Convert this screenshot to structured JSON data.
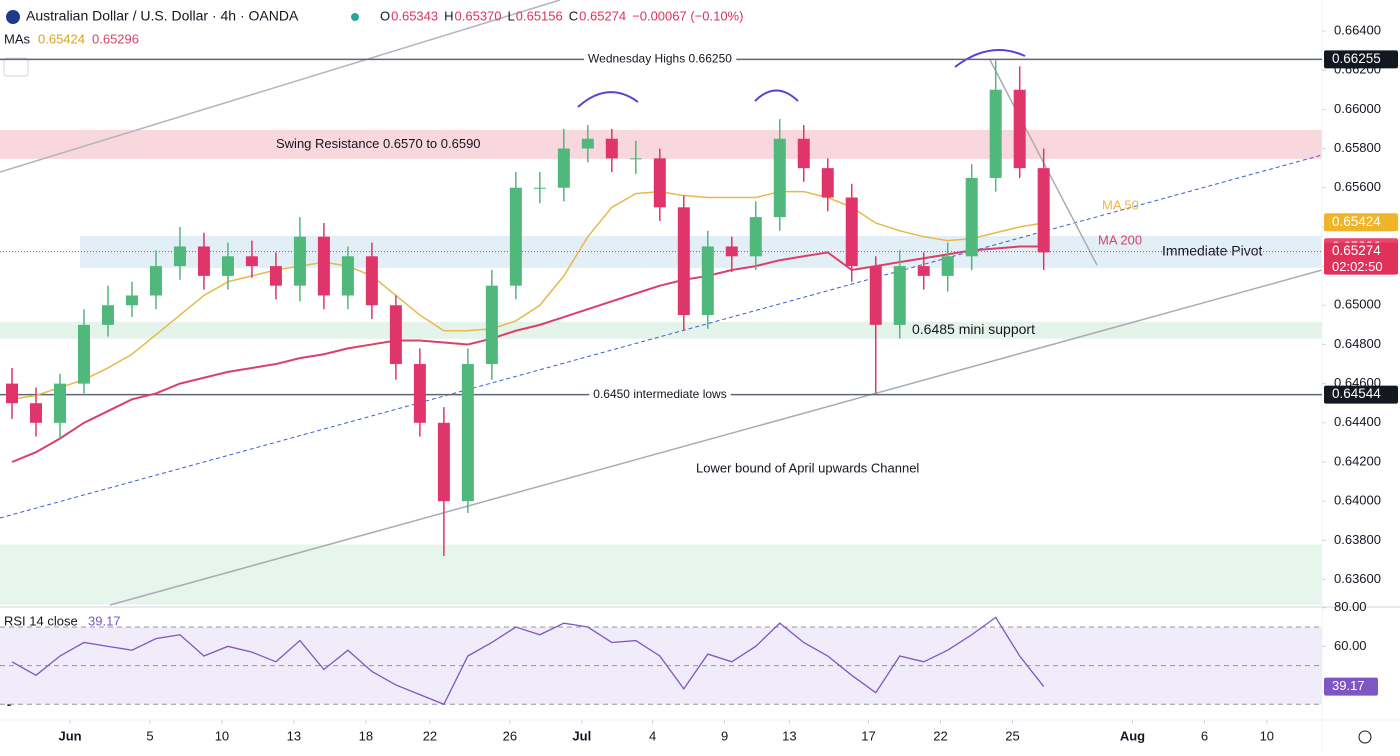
{
  "chart_data": {
    "type": "candlestick",
    "title": "Australian Dollar / U.S. Dollar · 4h · OANDA",
    "header": [
      [
        "O",
        "0.65343"
      ],
      [
        "H",
        "0.65370"
      ],
      [
        "L",
        "0.65156"
      ],
      [
        "C",
        "0.65274"
      ],
      [
        "",
        "−0.00067 (−0.10%)"
      ]
    ],
    "ma_header": {
      "label": "MAs",
      "values": [
        "0.65424",
        "0.65296"
      ]
    },
    "open": [
      0.646,
      0.645,
      0.644,
      0.646,
      0.649,
      0.65,
      0.6505,
      0.652,
      0.653,
      0.6515,
      0.6525,
      0.652,
      0.651,
      0.6535,
      0.6505,
      0.6525,
      0.65,
      0.647,
      0.644,
      0.64,
      0.647,
      0.651,
      0.656,
      0.656,
      0.658,
      0.6585,
      0.6575,
      0.6575,
      0.655,
      0.6495,
      0.653,
      0.6525,
      0.6545,
      0.6585,
      0.657,
      0.6555,
      0.652,
      0.649,
      0.652,
      0.6515,
      0.6525,
      0.6565,
      0.661,
      0.657
    ],
    "high": [
      0.6468,
      0.6458,
      0.6465,
      0.6498,
      0.651,
      0.6512,
      0.6528,
      0.654,
      0.6537,
      0.6532,
      0.6533,
      0.6527,
      0.6545,
      0.6542,
      0.653,
      0.6532,
      0.6505,
      0.6478,
      0.6448,
      0.6478,
      0.6518,
      0.6568,
      0.6568,
      0.659,
      0.6592,
      0.659,
      0.6584,
      0.658,
      0.6556,
      0.6538,
      0.6535,
      0.6553,
      0.6595,
      0.6592,
      0.6575,
      0.6562,
      0.6525,
      0.6528,
      0.6527,
      0.6532,
      0.6572,
      0.6625,
      0.6622,
      0.658
    ],
    "low": [
      0.6442,
      0.6433,
      0.6432,
      0.6455,
      0.6484,
      0.6494,
      0.6498,
      0.6513,
      0.6508,
      0.6508,
      0.6514,
      0.6503,
      0.6502,
      0.6498,
      0.6498,
      0.6493,
      0.6462,
      0.6433,
      0.6372,
      0.6394,
      0.6462,
      0.6503,
      0.6552,
      0.6553,
      0.6573,
      0.6568,
      0.6567,
      0.6543,
      0.6487,
      0.6488,
      0.6517,
      0.6518,
      0.6538,
      0.6563,
      0.6548,
      0.6512,
      0.6455,
      0.6483,
      0.6508,
      0.6507,
      0.6518,
      0.6558,
      0.6565,
      0.6518
    ],
    "close": [
      0.645,
      0.644,
      0.646,
      0.649,
      0.65,
      0.6505,
      0.652,
      0.653,
      0.6515,
      0.6525,
      0.652,
      0.651,
      0.6535,
      0.6505,
      0.6525,
      0.65,
      0.647,
      0.644,
      0.64,
      0.647,
      0.651,
      0.656,
      0.656,
      0.658,
      0.6585,
      0.6575,
      0.6575,
      0.655,
      0.6495,
      0.653,
      0.6525,
      0.6545,
      0.6585,
      0.657,
      0.6555,
      0.652,
      0.649,
      0.652,
      0.6515,
      0.6525,
      0.6565,
      0.661,
      0.657,
      0.6527
    ],
    "up_color": "#4fb87a",
    "down_color": "#e0356a",
    "series": [
      {
        "name": "MA 50",
        "color": "#e8b84a",
        "values": [
          0.6452,
          0.6454,
          0.6458,
          0.6462,
          0.6468,
          0.6475,
          0.6485,
          0.6495,
          0.6505,
          0.6512,
          0.6515,
          0.6518,
          0.652,
          0.6522,
          0.652,
          0.6515,
          0.6505,
          0.6495,
          0.6487,
          0.6487,
          0.6488,
          0.6492,
          0.65,
          0.6515,
          0.6535,
          0.655,
          0.6557,
          0.6558,
          0.6556,
          0.6555,
          0.6555,
          0.6555,
          0.6558,
          0.6558,
          0.6555,
          0.655,
          0.6542,
          0.6538,
          0.6535,
          0.6533,
          0.6534,
          0.6537,
          0.654,
          0.6542
        ]
      },
      {
        "name": "MA 200",
        "color": "#d9416a",
        "values": [
          0.642,
          0.6425,
          0.6432,
          0.644,
          0.6446,
          0.6452,
          0.6455,
          0.646,
          0.6463,
          0.6466,
          0.6468,
          0.647,
          0.6473,
          0.6475,
          0.6478,
          0.648,
          0.6482,
          0.6482,
          0.6481,
          0.648,
          0.6483,
          0.6487,
          0.649,
          0.6494,
          0.6498,
          0.6502,
          0.6506,
          0.651,
          0.6513,
          0.6515,
          0.6518,
          0.652,
          0.6523,
          0.6525,
          0.6527,
          0.6518,
          0.652,
          0.6522,
          0.6524,
          0.6526,
          0.6528,
          0.6529,
          0.653,
          0.653
        ]
      }
    ],
    "xlim": [
      0,
      55.1
    ],
    "xticks": [
      {
        "value": 2.92,
        "label": "Jun"
      },
      {
        "value": 6.25,
        "label": "5"
      },
      {
        "value": 9.25,
        "label": "10"
      },
      {
        "value": 12.25,
        "label": "13"
      },
      {
        "value": 15.25,
        "label": "18"
      },
      {
        "value": 17.92,
        "label": "22"
      },
      {
        "value": 21.25,
        "label": "26"
      },
      {
        "value": 24.25,
        "label": "Jul"
      },
      {
        "value": 27.2,
        "label": "4"
      },
      {
        "value": 30.2,
        "label": "9"
      },
      {
        "value": 32.9,
        "label": "13"
      },
      {
        "value": 36.2,
        "label": "17"
      },
      {
        "value": 39.2,
        "label": "22"
      },
      {
        "value": 42.2,
        "label": "25"
      },
      {
        "value": 47.2,
        "label": "Aug"
      },
      {
        "value": 50.2,
        "label": "6"
      },
      {
        "value": 52.8,
        "label": "10"
      }
    ],
    "ylim": [
      0.6347,
      0.664
    ],
    "yticks": [
      {
        "value": 0.664,
        "label": "0.66400"
      },
      {
        "value": 0.662,
        "label": "0.66200"
      },
      {
        "value": 0.66,
        "label": "0.66000"
      },
      {
        "value": 0.658,
        "label": "0.65800"
      },
      {
        "value": 0.656,
        "label": "0.65600"
      },
      {
        "value": 0.654,
        "label": "0.65400"
      },
      {
        "value": 0.652,
        "label": "0.65200"
      },
      {
        "value": 0.65,
        "label": "0.65000"
      },
      {
        "value": 0.648,
        "label": "0.64800"
      },
      {
        "value": 0.646,
        "label": "0.64600"
      },
      {
        "value": 0.644,
        "label": "0.64400"
      },
      {
        "value": 0.642,
        "label": "0.64200"
      },
      {
        "value": 0.64,
        "label": "0.64000"
      },
      {
        "value": 0.638,
        "label": "0.63800"
      },
      {
        "value": 0.636,
        "label": "0.63600"
      }
    ],
    "price_tags": [
      {
        "value": 0.66255,
        "color": "#131722"
      },
      {
        "value": 0.65424,
        "color": "#f0b429"
      },
      {
        "value": 0.65296,
        "color": "#e5486f"
      },
      {
        "value": 0.65274,
        "color": "#e0315a"
      },
      {
        "value": 0.64544,
        "color": "#131722"
      }
    ],
    "countdown": "02:02:50",
    "levels": [
      {
        "label": "Wednesday Highs 0.66250",
        "value": 0.66255
      },
      {
        "label": "0.6450 intermediate lows",
        "value": 0.64544
      }
    ],
    "zones": [
      {
        "label": "Swing Resistance 0.6570 to 0.6590",
        "low": 0.65747,
        "high": 0.65895,
        "color": "#f8d7df"
      },
      {
        "label": "Immediate Pivot",
        "low": 0.65191,
        "high": 0.65354,
        "color": "#e3eff7"
      },
      {
        "label": "0.6485 mini support",
        "low": 0.64829,
        "high": 0.64915,
        "color": "#e4f4ea"
      },
      {
        "label": null,
        "low": 0.63472,
        "high": 0.63779,
        "color": "#e7f6ec"
      }
    ],
    "annotations": [
      "Lower bound of April upwards Channel"
    ],
    "rsi": {
      "name": "RSI 14 close",
      "color": "#7e57c2",
      "values": [
        52,
        45,
        55,
        62,
        60,
        58,
        64,
        66,
        55,
        60,
        57,
        52,
        63,
        48,
        58,
        47,
        40,
        35,
        30,
        55,
        62,
        70,
        66,
        72,
        70,
        62,
        63,
        55,
        38,
        56,
        52,
        60,
        72,
        62,
        55,
        45,
        36,
        55,
        52,
        58,
        66,
        75,
        55,
        39.17
      ],
      "ylim": [
        26,
        84
      ],
      "yticks": [
        {
          "value": 80,
          "label": "80.00"
        },
        {
          "value": 60,
          "label": "60.00"
        }
      ],
      "levels": [
        70,
        50,
        30
      ]
    }
  }
}
